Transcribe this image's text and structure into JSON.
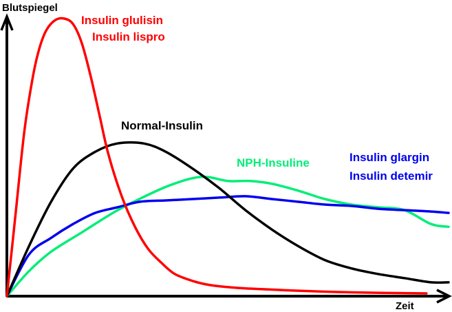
{
  "chart_data": {
    "type": "line",
    "title": "",
    "xlabel": "Zeit",
    "ylabel": "Blutspiegel",
    "xlim": [
      0,
      100
    ],
    "ylim": [
      0,
      100
    ],
    "grid": false,
    "legend": "inline labels next to curves",
    "series": [
      {
        "name": "Insulin glulisin / Insulin lispro",
        "labels": [
          "Insulin glulisin",
          "Insulin lispro"
        ],
        "color": "#ff0000",
        "x": [
          0,
          2,
          4,
          6,
          7.5,
          9,
          11,
          13,
          15,
          17,
          19,
          21,
          23,
          26,
          29,
          32,
          35,
          38,
          42,
          46,
          52,
          58,
          65,
          75,
          85,
          95
        ],
        "y": [
          0,
          30,
          60,
          80,
          90,
          96,
          99.5,
          100,
          98,
          91,
          79,
          65,
          51,
          36,
          25,
          17,
          12,
          8,
          5.5,
          4,
          3,
          2.5,
          2,
          1.5,
          1.2,
          1
        ]
      },
      {
        "name": "Normal-Insulin",
        "labels": [
          "Normal-Insulin"
        ],
        "color": "#000000",
        "x": [
          0,
          5,
          10,
          15,
          20,
          25,
          31,
          36,
          42,
          48,
          54,
          60,
          66,
          72,
          78,
          84,
          90,
          96,
          100
        ],
        "y": [
          0,
          18,
          34,
          46,
          52,
          55,
          55,
          52,
          46,
          39,
          31,
          24,
          18,
          13,
          10,
          8,
          6.5,
          5,
          5
        ]
      },
      {
        "name": "NPH-Insuline",
        "labels": [
          "NPH-Insuline"
        ],
        "color": "#00ee77",
        "x": [
          0,
          5,
          10,
          17,
          24,
          30,
          37,
          44,
          50,
          55,
          60,
          66,
          72,
          78,
          84,
          90,
          96,
          100
        ],
        "y": [
          0,
          9,
          16,
          23,
          30,
          35,
          40,
          43,
          41.5,
          41.5,
          40.5,
          38,
          35,
          33,
          32,
          31,
          26,
          25
        ]
      },
      {
        "name": "Insulin glargin / Insulin detemir",
        "labels": [
          "Insulin glargin",
          "Insulin detemir"
        ],
        "color": "#0000ee",
        "x": [
          0,
          5,
          10,
          15,
          20,
          25,
          30,
          36,
          42,
          48,
          54,
          60,
          66,
          72,
          78,
          84,
          90,
          96,
          100
        ],
        "y": [
          0,
          15,
          21,
          26,
          30,
          32,
          34,
          34.5,
          35,
          35.5,
          36,
          35,
          34,
          33,
          32.5,
          31.5,
          31,
          30.5,
          30
        ]
      }
    ],
    "annotations": {
      "red": [
        "Insulin glulisin",
        "Insulin lispro"
      ],
      "black": [
        "Normal-Insulin"
      ],
      "green": [
        "NPH-Insuline"
      ],
      "blue": [
        "Insulin glargin",
        "Insulin detemir"
      ]
    }
  }
}
